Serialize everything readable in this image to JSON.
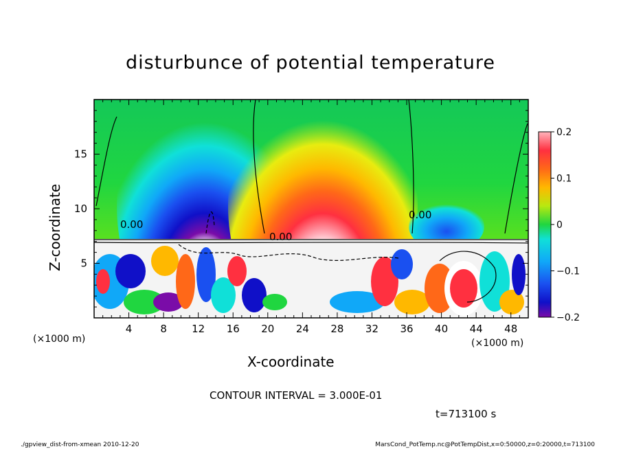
{
  "chart_data": {
    "type": "heatmap",
    "title": "disturbunce of potential temperature",
    "xlabel": "X-coordinate",
    "ylabel": "Z-coordinate",
    "x_unit": "(×1000 m)",
    "y_unit": "(×1000 m)",
    "x_ticks": [
      4,
      8,
      12,
      16,
      20,
      24,
      28,
      32,
      36,
      40,
      44,
      48
    ],
    "y_ticks": [
      5,
      10,
      15
    ],
    "xlim": [
      0,
      50
    ],
    "ylim": [
      0,
      20
    ],
    "colorbar": {
      "ticks": [
        0.2,
        0.1,
        0,
        -0.1,
        -0.2
      ],
      "tick_labels": [
        "0.2",
        "0.1",
        "0",
        "−0.1",
        "−0.2"
      ],
      "range": [
        -0.2,
        0.2
      ]
    },
    "contour_labels": [
      "0.00",
      "0.00",
      "0.00"
    ],
    "features": [
      {
        "kind": "cold_plume",
        "x_center": 12.5,
        "min_value": -0.2
      },
      {
        "kind": "warm_plume",
        "x_center": 26,
        "max_value": 0.2
      },
      {
        "kind": "cold_cell",
        "x_center": 40,
        "min_value": -0.1
      }
    ],
    "contour_interval": "CONTOUR INTERVAL = 3.000E-01",
    "time": "t=713100 s"
  },
  "footer": {
    "left": "./gpview_dist-from-xmean  2010-12-20",
    "right": "MarsCond_PotTemp.nc@PotTempDist,x=0:50000,z=0:20000,t=713100"
  }
}
